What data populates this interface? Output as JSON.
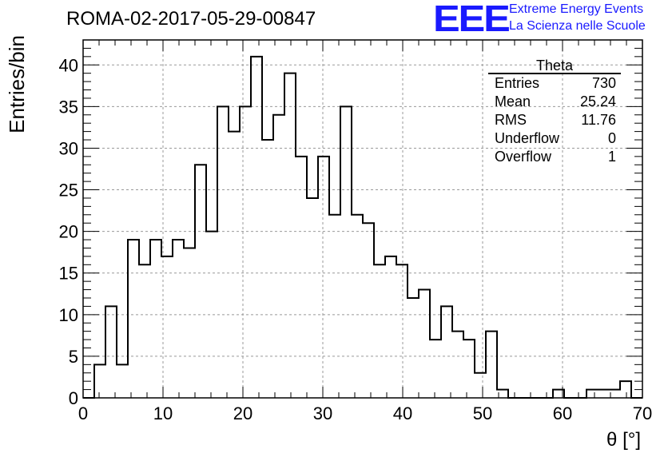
{
  "header": {
    "run_title": "ROMA-02-2017-05-29-00847",
    "logo_text": "EEE",
    "logo_line1": "Extreme Energy Events",
    "logo_line2": "La Scienza nelle Scuole"
  },
  "stats": {
    "title": "Theta",
    "rows": [
      {
        "label": "Entries",
        "value": "730"
      },
      {
        "label": "Mean",
        "value": "25.24"
      },
      {
        "label": "RMS",
        "value": "11.76"
      },
      {
        "label": "Underflow",
        "value": "0"
      },
      {
        "label": "Overflow",
        "value": "1"
      }
    ]
  },
  "chart_data": {
    "type": "bar",
    "histogram": true,
    "bin_width": 1.4,
    "x_start": 0,
    "values": [
      0,
      4,
      11,
      4,
      19,
      16,
      19,
      17,
      19,
      18,
      28,
      20,
      35,
      32,
      35,
      41,
      31,
      34,
      39,
      29,
      24,
      29,
      22,
      35,
      22,
      21,
      16,
      17,
      16,
      12,
      13,
      7,
      11,
      8,
      7,
      3,
      8,
      1,
      0,
      0,
      0,
      0,
      1,
      0,
      0,
      1,
      1,
      1,
      2,
      0
    ],
    "xlabel": "θ [°]",
    "ylabel": "Entries/bin",
    "xlim": [
      0,
      70
    ],
    "ylim": [
      0,
      43
    ],
    "x_ticks": [
      0,
      10,
      20,
      30,
      40,
      50,
      60,
      70
    ],
    "y_ticks": [
      0,
      5,
      10,
      15,
      20,
      25,
      30,
      35,
      40
    ],
    "grid": true,
    "line_color": "#000000"
  }
}
